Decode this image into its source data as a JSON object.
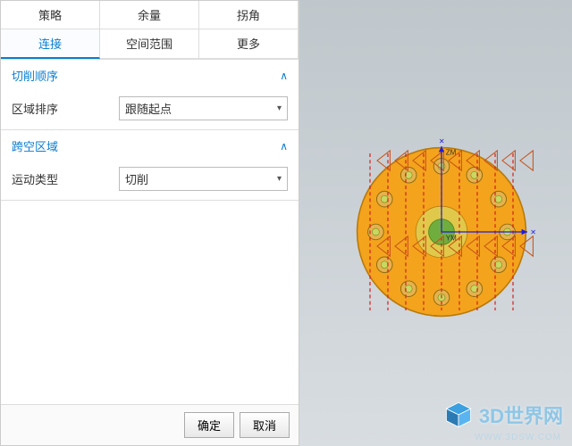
{
  "tabs": {
    "r1c1": "策略",
    "r1c2": "余量",
    "r1c3": "拐角",
    "r2c1": "连接",
    "r2c2": "空间范围",
    "r2c3": "更多",
    "active": "r2c1"
  },
  "sections": {
    "cut_order": {
      "title": "切削顺序",
      "row_label": "区域排序",
      "dropdown_value": "跟随起点"
    },
    "gap_region": {
      "title": "跨空区域",
      "row_label": "运动类型",
      "dropdown_value": "切削"
    }
  },
  "footer": {
    "ok": "确定",
    "cancel": "取消"
  },
  "viewport_diagram": {
    "type": "diagram",
    "background_gradient": [
      "#bfc7cc",
      "#d8dde1"
    ],
    "main_disc": {
      "fill": "#f3a41c",
      "stroke": "#b9790c",
      "r": 118
    },
    "center_ring_outer": {
      "fill": "#e0c94a",
      "r": 36
    },
    "center_ring_inner": {
      "fill": "#6fae3e",
      "r": 18
    },
    "hole_ring_r": 92,
    "hole_r": 11,
    "hole_count": 12,
    "hole_fill": "#e6b24e",
    "hole_stroke": "#8c6a10",
    "hole_inner_fill": "#c8d860",
    "hole_inner_r": 5,
    "cs_label_1": "ZM",
    "cs_label_2": "YM",
    "axis_color": "#1d1de0",
    "toolpath_color": "#d41e1e",
    "toolpath_dash": "5 4",
    "toolpath_width": 1.5,
    "triangle_stroke": "#c8521a",
    "triangle_fill": "none",
    "x_marker": "✕"
  },
  "watermark": {
    "text": "3D世界网",
    "sub": "WWW.3DSW.COM",
    "cube_fill": "#3b9fe0",
    "cube_stroke": "#ffffff"
  }
}
